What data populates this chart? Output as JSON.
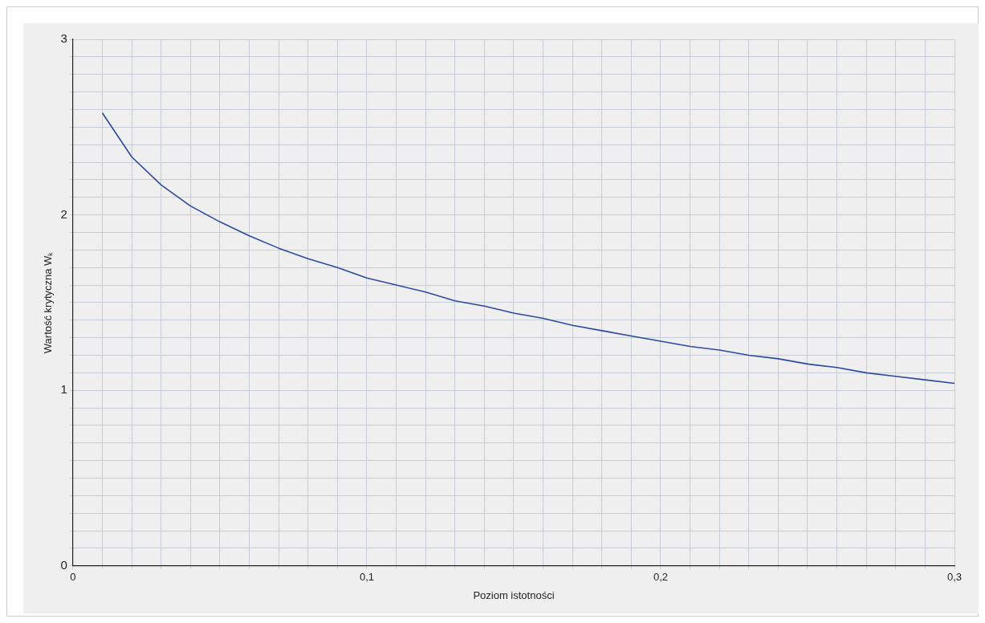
{
  "chart_data": {
    "type": "line",
    "xlabel": "Poziom istotności",
    "ylabel": "Wartość krytyczna Wₖ",
    "x": [
      0.01,
      0.02,
      0.03,
      0.04,
      0.05,
      0.06,
      0.07,
      0.08,
      0.09,
      0.1,
      0.11,
      0.12,
      0.13,
      0.14,
      0.15,
      0.16,
      0.17,
      0.18,
      0.19,
      0.2,
      0.21,
      0.22,
      0.23,
      0.24,
      0.25,
      0.26,
      0.27,
      0.28,
      0.29,
      0.3
    ],
    "series": [
      {
        "color": "#2b4aa0",
        "values": [
          2.58,
          2.33,
          2.17,
          2.05,
          1.96,
          1.88,
          1.81,
          1.75,
          1.7,
          1.64,
          1.6,
          1.56,
          1.51,
          1.48,
          1.44,
          1.41,
          1.37,
          1.34,
          1.31,
          1.28,
          1.25,
          1.23,
          1.2,
          1.18,
          1.15,
          1.13,
          1.1,
          1.08,
          1.06,
          1.04
        ]
      }
    ],
    "xlim": [
      0,
      0.3
    ],
    "ylim": [
      0,
      3
    ],
    "xticks": [
      0,
      {
        "value": 0.01,
        "label": null
      },
      {
        "value": 0.02,
        "label": null
      },
      {
        "value": 0.03,
        "label": null
      },
      {
        "value": 0.04,
        "label": null
      },
      {
        "value": 0.05,
        "label": null
      },
      {
        "value": 0.06,
        "label": null
      },
      {
        "value": 0.07,
        "label": null
      },
      {
        "value": 0.08,
        "label": null
      },
      {
        "value": 0.09,
        "label": null
      },
      {
        "value": 0.1,
        "label": "0,1"
      },
      {
        "value": 0.11,
        "label": null
      },
      {
        "value": 0.12,
        "label": null
      },
      {
        "value": 0.13,
        "label": null
      },
      {
        "value": 0.14,
        "label": null
      },
      {
        "value": 0.15,
        "label": null
      },
      {
        "value": 0.16,
        "label": null
      },
      {
        "value": 0.17,
        "label": null
      },
      {
        "value": 0.18,
        "label": null
      },
      {
        "value": 0.19,
        "label": null
      },
      {
        "value": 0.2,
        "label": "0,2"
      },
      {
        "value": 0.21,
        "label": null
      },
      {
        "value": 0.22,
        "label": null
      },
      {
        "value": 0.23,
        "label": null
      },
      {
        "value": 0.24,
        "label": null
      },
      {
        "value": 0.25,
        "label": null
      },
      {
        "value": 0.26,
        "label": null
      },
      {
        "value": 0.27,
        "label": null
      },
      {
        "value": 0.28,
        "label": null
      },
      {
        "value": 0.29,
        "label": null
      },
      {
        "value": 0.3,
        "label": "0,3"
      }
    ],
    "yticks": [
      0,
      {
        "value": 0.1,
        "label": null
      },
      {
        "value": 0.2,
        "label": null
      },
      {
        "value": 0.3,
        "label": null
      },
      {
        "value": 0.4,
        "label": null
      },
      {
        "value": 0.5,
        "label": null
      },
      {
        "value": 0.6,
        "label": null
      },
      {
        "value": 0.7,
        "label": null
      },
      {
        "value": 0.8,
        "label": null
      },
      {
        "value": 0.9,
        "label": null
      },
      1,
      {
        "value": 1.1,
        "label": null
      },
      {
        "value": 1.2,
        "label": null
      },
      {
        "value": 1.3,
        "label": null
      },
      {
        "value": 1.4,
        "label": null
      },
      {
        "value": 1.5,
        "label": null
      },
      {
        "value": 1.6,
        "label": null
      },
      {
        "value": 1.7,
        "label": null
      },
      {
        "value": 1.8,
        "label": null
      },
      {
        "value": 1.9,
        "label": null
      },
      2,
      {
        "value": 2.1,
        "label": null
      },
      {
        "value": 2.2,
        "label": null
      },
      {
        "value": 2.3,
        "label": null
      },
      {
        "value": 2.4,
        "label": null
      },
      {
        "value": 2.5,
        "label": null
      },
      {
        "value": 2.6,
        "label": null
      },
      {
        "value": 2.7,
        "label": null
      },
      {
        "value": 2.8,
        "label": null
      },
      {
        "value": 2.9,
        "label": null
      },
      3
    ],
    "grid": true,
    "legend": false,
    "marker": "none",
    "line_style": "solid"
  }
}
